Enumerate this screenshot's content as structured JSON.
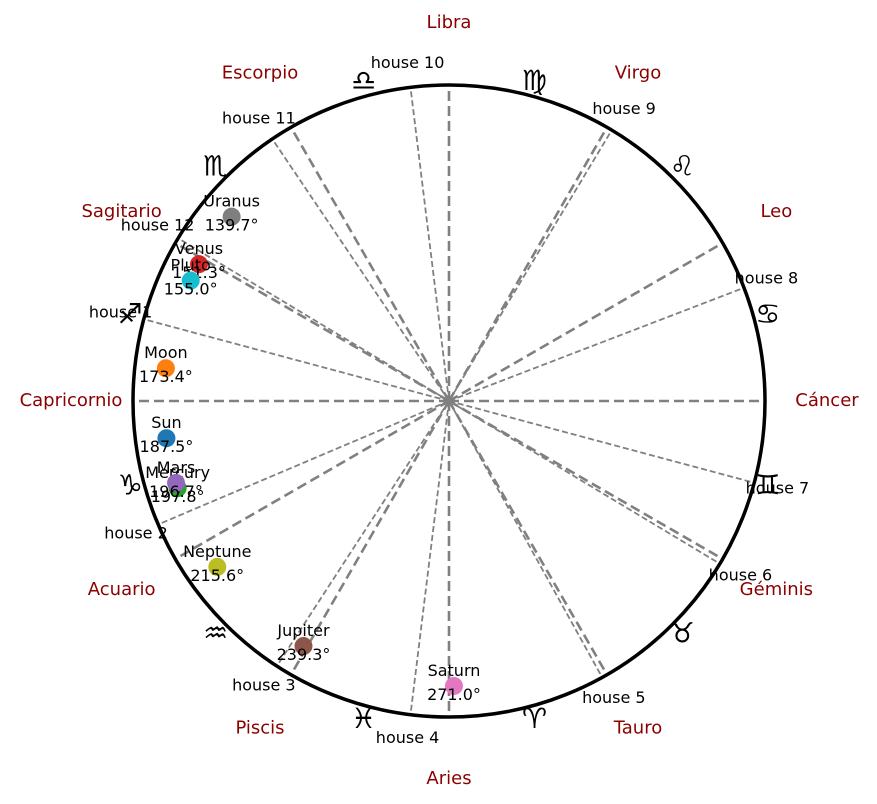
{
  "chart_data": {
    "type": "astrological-wheel",
    "zero_degree_direction": "right",
    "direction": "counterclockwise",
    "signs": [
      {
        "name": "Cáncer",
        "glyph": "♋",
        "glyph_name": "cancer-glyph",
        "name_angle": 0,
        "glyph_angle": 15
      },
      {
        "name": "Leo",
        "glyph": "♌",
        "glyph_name": "leo-glyph",
        "name_angle": 30,
        "glyph_angle": 45
      },
      {
        "name": "Virgo",
        "glyph": "♍",
        "glyph_name": "virgo-glyph",
        "name_angle": 60,
        "glyph_angle": 75
      },
      {
        "name": "Libra",
        "glyph": "♎",
        "glyph_name": "libra-glyph",
        "name_angle": 90,
        "glyph_angle": 105
      },
      {
        "name": "Escorpio",
        "glyph": "♏",
        "glyph_name": "scorpio-glyph",
        "name_angle": 120,
        "glyph_angle": 135
      },
      {
        "name": "Sagitario",
        "glyph": "♐",
        "glyph_name": "sagittarius-glyph",
        "name_angle": 150,
        "glyph_angle": 165
      },
      {
        "name": "Capricornio",
        "glyph": "♑",
        "glyph_name": "capricorn-glyph",
        "name_angle": 180,
        "glyph_angle": 195
      },
      {
        "name": "Acuario",
        "glyph": "♒",
        "glyph_name": "aquarius-glyph",
        "name_angle": 210,
        "glyph_angle": 225
      },
      {
        "name": "Piscis",
        "glyph": "♓",
        "glyph_name": "pisces-glyph",
        "name_angle": 240,
        "glyph_angle": 255
      },
      {
        "name": "Aries",
        "glyph": "♈",
        "glyph_name": "aries-glyph",
        "name_angle": 270,
        "glyph_angle": 285
      },
      {
        "name": "Tauro",
        "glyph": "♉",
        "glyph_name": "taurus-glyph",
        "name_angle": 300,
        "glyph_angle": 315
      },
      {
        "name": "Géminis",
        "glyph": "♊",
        "glyph_name": "gemini-glyph",
        "name_angle": 330,
        "glyph_angle": 345
      }
    ],
    "sign_boundaries": [
      0,
      30,
      60,
      90,
      120,
      150,
      180,
      210,
      240,
      270,
      300,
      330
    ],
    "houses": [
      {
        "label": "house  1",
        "cusp": 165
      },
      {
        "label": "house  2",
        "cusp": 203
      },
      {
        "label": "house  3",
        "cusp": 237
      },
      {
        "label": "house  4",
        "cusp": 263
      },
      {
        "label": "house  5",
        "cusp": 299
      },
      {
        "label": "house  6",
        "cusp": 329
      },
      {
        "label": "house  7",
        "cusp": 345
      },
      {
        "label": "house  8",
        "cusp": 21
      },
      {
        "label": "house  9",
        "cusp": 59
      },
      {
        "label": "house 10",
        "cusp": 97
      },
      {
        "label": "house 11",
        "cusp": 124
      },
      {
        "label": "house 12",
        "cusp": 149
      }
    ],
    "planets": [
      {
        "name": "Sun",
        "longitude": 187.5,
        "degree_label": "187.5°",
        "color": "#1f77b4"
      },
      {
        "name": "Moon",
        "longitude": 173.4,
        "degree_label": "173.4°",
        "color": "#ff7f0e"
      },
      {
        "name": "Mercury",
        "longitude": 197.8,
        "degree_label": "197.8°",
        "color": "#2ca02c"
      },
      {
        "name": "Venus",
        "longitude": 151.3,
        "degree_label": "151.3°",
        "color": "#d62728"
      },
      {
        "name": "Mars",
        "longitude": 196.7,
        "degree_label": "196.7°",
        "color": "#9467bd"
      },
      {
        "name": "Jupiter",
        "longitude": 239.3,
        "degree_label": "239.3°",
        "color": "#8c564b"
      },
      {
        "name": "Saturn",
        "longitude": 271.0,
        "degree_label": "271.0°",
        "color": "#e377c2"
      },
      {
        "name": "Uranus",
        "longitude": 139.7,
        "degree_label": "139.7°",
        "color": "#7f7f7f"
      },
      {
        "name": "Neptune",
        "longitude": 215.6,
        "degree_label": "215.6°",
        "color": "#bcbd22"
      },
      {
        "name": "Pluto",
        "longitude": 155.0,
        "degree_label": "155.0°",
        "color": "#17becf"
      }
    ]
  }
}
